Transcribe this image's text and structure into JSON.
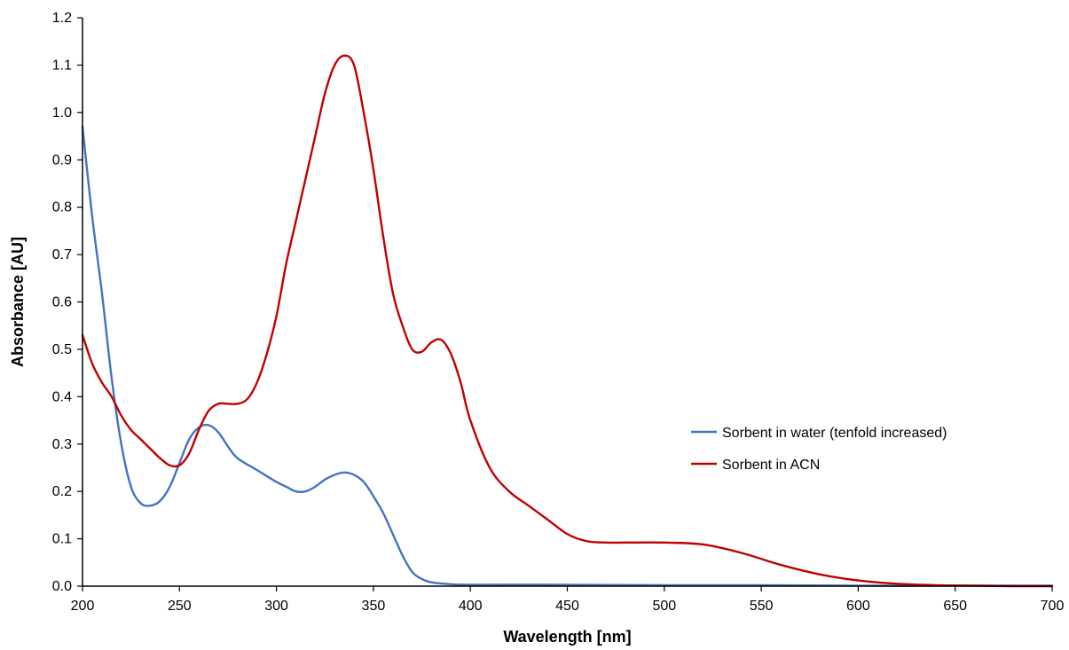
{
  "chart_data": {
    "type": "line",
    "xlabel": "Wavelength [nm]",
    "ylabel": "Absorbance [AU]",
    "xlim": [
      200,
      700
    ],
    "ylim": [
      0,
      1.2
    ],
    "x_ticks": [
      200,
      250,
      300,
      350,
      400,
      450,
      500,
      550,
      600,
      650,
      700
    ],
    "y_ticks": [
      "0.0",
      "0.1",
      "0.2",
      "0.3",
      "0.4",
      "0.5",
      "0.6",
      "0.7",
      "0.8",
      "0.9",
      "1.0",
      "1.1",
      "1.2"
    ],
    "grid": false,
    "legend_position": "right",
    "series": [
      {
        "name": "Sorbent in water (tenfold increased)",
        "color": "#4472C4",
        "x": [
          200,
          205,
          210,
          215,
          220,
          225,
          230,
          235,
          240,
          245,
          250,
          255,
          260,
          265,
          270,
          275,
          280,
          290,
          300,
          305,
          310,
          315,
          320,
          325,
          330,
          335,
          340,
          345,
          350,
          355,
          360,
          365,
          370,
          375,
          380,
          390,
          400,
          450,
          500,
          550,
          600,
          650,
          700
        ],
        "y": [
          0.97,
          0.78,
          0.62,
          0.44,
          0.3,
          0.21,
          0.175,
          0.17,
          0.18,
          0.21,
          0.26,
          0.31,
          0.335,
          0.34,
          0.325,
          0.295,
          0.27,
          0.245,
          0.22,
          0.21,
          0.2,
          0.2,
          0.21,
          0.225,
          0.235,
          0.24,
          0.235,
          0.22,
          0.19,
          0.155,
          0.11,
          0.065,
          0.03,
          0.015,
          0.008,
          0.004,
          0.003,
          0.003,
          0.002,
          0.002,
          0.001,
          0.001,
          0.001
        ]
      },
      {
        "name": "Sorbent in ACN",
        "color": "#C00000",
        "x": [
          200,
          205,
          210,
          215,
          220,
          225,
          230,
          235,
          240,
          245,
          250,
          255,
          260,
          265,
          270,
          275,
          280,
          285,
          290,
          295,
          300,
          305,
          310,
          315,
          320,
          325,
          330,
          335,
          340,
          345,
          350,
          355,
          360,
          365,
          370,
          375,
          380,
          385,
          390,
          395,
          400,
          410,
          420,
          430,
          440,
          450,
          460,
          470,
          480,
          500,
          520,
          540,
          560,
          580,
          600,
          620,
          640,
          660,
          680,
          700
        ],
        "y": [
          0.53,
          0.47,
          0.43,
          0.4,
          0.36,
          0.33,
          0.31,
          0.29,
          0.27,
          0.255,
          0.255,
          0.28,
          0.33,
          0.37,
          0.385,
          0.385,
          0.385,
          0.395,
          0.43,
          0.49,
          0.57,
          0.68,
          0.77,
          0.86,
          0.95,
          1.04,
          1.1,
          1.12,
          1.1,
          1.0,
          0.88,
          0.74,
          0.62,
          0.55,
          0.5,
          0.495,
          0.515,
          0.52,
          0.49,
          0.43,
          0.35,
          0.25,
          0.2,
          0.17,
          0.14,
          0.11,
          0.095,
          0.092,
          0.092,
          0.092,
          0.088,
          0.07,
          0.045,
          0.025,
          0.012,
          0.005,
          0.002,
          0.001,
          0.0,
          0.0
        ]
      }
    ]
  }
}
